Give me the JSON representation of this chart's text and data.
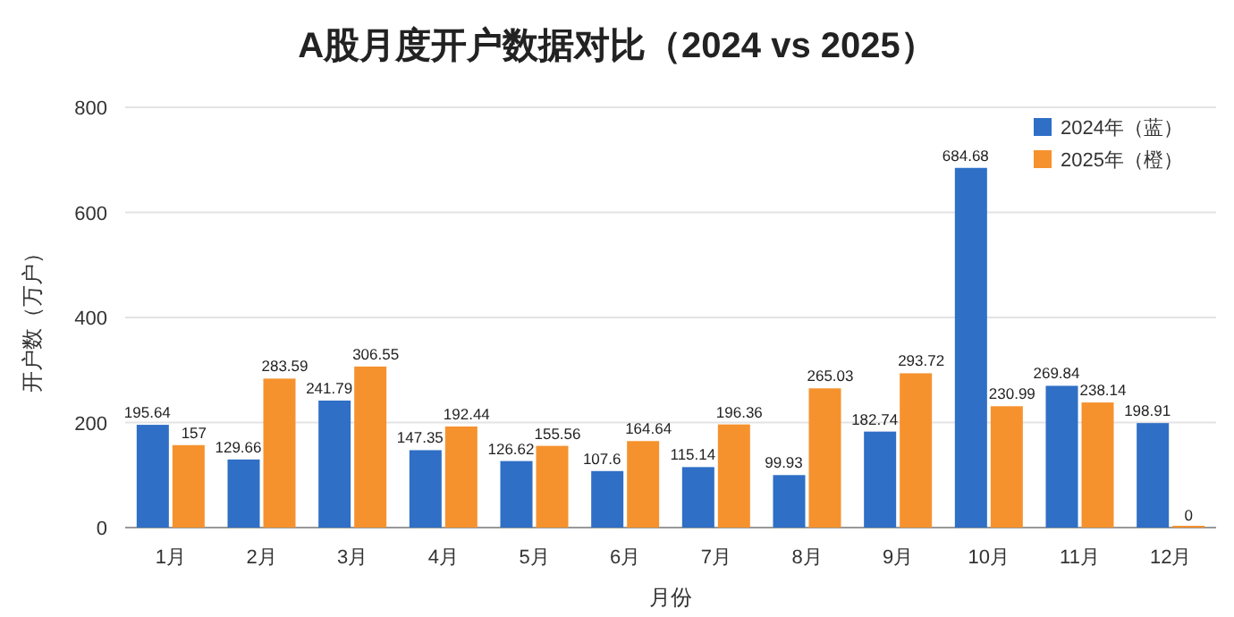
{
  "chart_data": {
    "type": "bar",
    "title": "A股月度开户数据对比（2024 vs 2025）",
    "xlabel": "月份",
    "ylabel": "开户数（万户）",
    "categories": [
      "1月",
      "2月",
      "3月",
      "4月",
      "5月",
      "6月",
      "7月",
      "8月",
      "9月",
      "10月",
      "11月",
      "12月"
    ],
    "series": [
      {
        "name": "2024年（蓝）",
        "color": "#2f6fc6",
        "values": [
          195.64,
          129.66,
          241.79,
          147.35,
          126.62,
          107.6,
          115.14,
          99.93,
          182.74,
          684.68,
          269.84,
          198.91
        ]
      },
      {
        "name": "2025年（橙）",
        "color": "#f6922e",
        "values": [
          157,
          283.59,
          306.55,
          192.44,
          155.56,
          164.64,
          196.36,
          265.03,
          293.72,
          230.99,
          238.14,
          0
        ]
      }
    ],
    "ylim": [
      0,
      800
    ],
    "yticks": [
      0,
      200,
      400,
      600,
      800
    ],
    "grid": "y",
    "legend": "top right",
    "data_labels": true
  }
}
